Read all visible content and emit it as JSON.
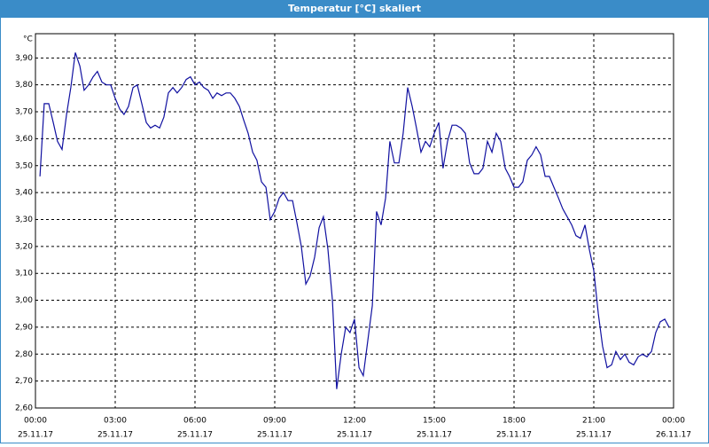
{
  "chart_data": {
    "type": "line",
    "title": "Temperatur [°C] skaliert",
    "y_label": "°C",
    "color": "#1010a0",
    "grid": true,
    "xlim": [
      0,
      24
    ],
    "ylim": [
      2.6,
      3.99
    ],
    "xticks": [
      {
        "value": 0,
        "label": "00:00"
      },
      {
        "value": 3,
        "label": "03:00"
      },
      {
        "value": 6,
        "label": "06:00"
      },
      {
        "value": 9,
        "label": "09:00"
      },
      {
        "value": 12,
        "label": "12:00"
      },
      {
        "value": 15,
        "label": "15:00"
      },
      {
        "value": 18,
        "label": "18:00"
      },
      {
        "value": 21,
        "label": "21:00"
      },
      {
        "value": 24,
        "label": "00:00"
      }
    ],
    "xtick_dates": [
      "25.11.17",
      "25.11.17",
      "25.11.17",
      "25.11.17",
      "25.11.17",
      "25.11.17",
      "25.11.17",
      "25.11.17",
      "26.11.17"
    ],
    "yticks": [
      {
        "value": 2.6,
        "label": "2,60"
      },
      {
        "value": 2.7,
        "label": "2,70"
      },
      {
        "value": 2.8,
        "label": "2,80"
      },
      {
        "value": 2.9,
        "label": "2,90"
      },
      {
        "value": 3.0,
        "label": "3,00"
      },
      {
        "value": 3.1,
        "label": "3,10"
      },
      {
        "value": 3.2,
        "label": "3,20"
      },
      {
        "value": 3.3,
        "label": "3,30"
      },
      {
        "value": 3.4,
        "label": "3,40"
      },
      {
        "value": 3.5,
        "label": "3,50"
      },
      {
        "value": 3.6,
        "label": "3,60"
      },
      {
        "value": 3.7,
        "label": "3,70"
      },
      {
        "value": 3.8,
        "label": "3,80"
      },
      {
        "value": 3.9,
        "label": "3,90"
      }
    ],
    "x": [
      0.17,
      0.33,
      0.5,
      0.67,
      0.83,
      1,
      1.17,
      1.33,
      1.5,
      1.67,
      1.83,
      2,
      2.17,
      2.33,
      2.5,
      2.67,
      2.83,
      3,
      3.17,
      3.33,
      3.5,
      3.67,
      3.83,
      4,
      4.17,
      4.33,
      4.5,
      4.67,
      4.83,
      5,
      5.17,
      5.33,
      5.5,
      5.67,
      5.83,
      6,
      6.17,
      6.33,
      6.5,
      6.67,
      6.83,
      7,
      7.17,
      7.33,
      7.5,
      7.67,
      7.83,
      8,
      8.17,
      8.33,
      8.5,
      8.67,
      8.83,
      9,
      9.17,
      9.33,
      9.5,
      9.67,
      9.83,
      10,
      10.17,
      10.33,
      10.5,
      10.67,
      10.83,
      11,
      11.17,
      11.33,
      11.5,
      11.67,
      11.83,
      12,
      12.17,
      12.33,
      12.5,
      12.67,
      12.83,
      13,
      13.17,
      13.33,
      13.5,
      13.67,
      13.83,
      14,
      14.17,
      14.33,
      14.5,
      14.67,
      14.83,
      15,
      15.17,
      15.33,
      15.5,
      15.67,
      15.83,
      16,
      16.17,
      16.33,
      16.5,
      16.67,
      16.83,
      17,
      17.17,
      17.33,
      17.5,
      17.67,
      17.83,
      18,
      18.17,
      18.33,
      18.5,
      18.67,
      18.83,
      19,
      19.17,
      19.33,
      19.5,
      19.67,
      19.83,
      20,
      20.17,
      20.33,
      20.5,
      20.67,
      20.83,
      21,
      21.17,
      21.33,
      21.5,
      21.67,
      21.83,
      22,
      22.17,
      22.33,
      22.5,
      22.67,
      22.83,
      23,
      23.17,
      23.33,
      23.5,
      23.67,
      23.83
    ],
    "values": [
      3.46,
      3.73,
      3.73,
      3.66,
      3.59,
      3.56,
      3.69,
      3.79,
      3.92,
      3.87,
      3.78,
      3.8,
      3.83,
      3.85,
      3.81,
      3.8,
      3.8,
      3.75,
      3.71,
      3.69,
      3.72,
      3.79,
      3.8,
      3.73,
      3.66,
      3.64,
      3.65,
      3.64,
      3.68,
      3.77,
      3.79,
      3.77,
      3.79,
      3.82,
      3.83,
      3.8,
      3.81,
      3.79,
      3.78,
      3.75,
      3.77,
      3.76,
      3.77,
      3.77,
      3.75,
      3.72,
      3.67,
      3.62,
      3.55,
      3.52,
      3.44,
      3.42,
      3.3,
      3.33,
      3.38,
      3.4,
      3.37,
      3.37,
      3.29,
      3.2,
      3.06,
      3.09,
      3.16,
      3.27,
      3.31,
      3.19,
      3.0,
      2.67,
      2.8,
      2.9,
      2.88,
      2.93,
      2.75,
      2.72,
      2.85,
      2.98,
      3.33,
      3.28,
      3.38,
      3.59,
      3.51,
      3.51,
      3.62,
      3.79,
      3.72,
      3.64,
      3.55,
      3.59,
      3.57,
      3.62,
      3.66,
      3.49,
      3.59,
      3.65,
      3.65,
      3.64,
      3.62,
      3.51,
      3.47,
      3.47,
      3.49,
      3.59,
      3.55,
      3.62,
      3.59,
      3.49,
      3.46,
      3.42,
      3.42,
      3.44,
      3.52,
      3.54,
      3.57,
      3.54,
      3.46,
      3.46,
      3.42,
      3.38,
      3.34,
      3.31,
      3.28,
      3.24,
      3.23,
      3.28,
      3.19,
      3.11,
      2.95,
      2.83,
      2.75,
      2.76,
      2.81,
      2.78,
      2.8,
      2.77,
      2.76,
      2.79,
      2.8,
      2.79,
      2.81,
      2.88,
      2.92,
      2.93,
      2.9
    ]
  }
}
